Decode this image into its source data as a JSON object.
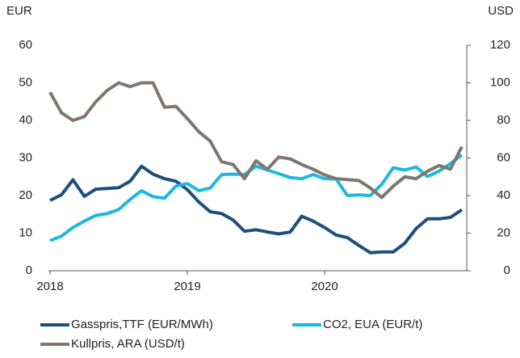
{
  "chart_data": {
    "type": "line",
    "ylabel": "EUR",
    "y2label": "USD",
    "categories": [
      "2018",
      null,
      null,
      null,
      null,
      null,
      null,
      null,
      null,
      null,
      null,
      null,
      "2019",
      null,
      null,
      null,
      null,
      null,
      null,
      null,
      null,
      null,
      null,
      null,
      "2020",
      null,
      null,
      null,
      null,
      null,
      null,
      null,
      null,
      null,
      null,
      null,
      null
    ],
    "series": [
      {
        "name": "Gasspris,TTF (EUR/MWh)",
        "color": "#1d4f7c",
        "values": [
          18.7,
          20.2,
          24.2,
          19.8,
          21.7,
          21.9,
          22.1,
          23.8,
          27.8,
          25.7,
          24.5,
          23.8,
          21.6,
          18.3,
          15.7,
          15.2,
          13.5,
          10.5,
          10.9,
          10.3,
          9.8,
          10.3,
          14.5,
          13.2,
          11.5,
          9.5,
          8.8,
          6.7,
          4.8,
          5.0,
          5.0,
          7.3,
          11.2,
          13.8,
          13.8,
          14.2,
          16.2
        ]
      },
      {
        "name": "CO2, EUA (EUR/t)",
        "color": "#1fb7e0",
        "values": [
          8.0,
          9.2,
          11.5,
          13.2,
          14.7,
          15.2,
          16.3,
          19.0,
          21.3,
          19.7,
          19.3,
          22.5,
          23.2,
          21.3,
          22.0,
          25.6,
          25.7,
          25.6,
          27.8,
          26.8,
          25.8,
          24.8,
          24.5,
          25.6,
          24.5,
          24.4,
          20.0,
          20.2,
          20.0,
          23.0,
          27.4,
          26.8,
          27.6,
          25.1,
          26.5,
          28.5,
          30.8
        ]
      },
      {
        "name": "Kullpris, ARA (USD/t)",
        "color": "#7f7670",
        "axis": "y2",
        "values": [
          95,
          84,
          80,
          82,
          90,
          96,
          100,
          98,
          100,
          100,
          87,
          87.5,
          81,
          74,
          69,
          58,
          56.5,
          49,
          58.5,
          54,
          60.5,
          59.5,
          56.5,
          54,
          51,
          49,
          48.5,
          48,
          44,
          39,
          45,
          50,
          49,
          53,
          56,
          54,
          66
        ]
      }
    ],
    "ylim": [
      0,
      60
    ],
    "yticks": [
      0,
      10,
      20,
      30,
      40,
      50,
      60
    ],
    "y2lim": [
      0,
      120
    ],
    "y2ticks": [
      0,
      20,
      40,
      60,
      80,
      100,
      120
    ],
    "grid": false
  }
}
